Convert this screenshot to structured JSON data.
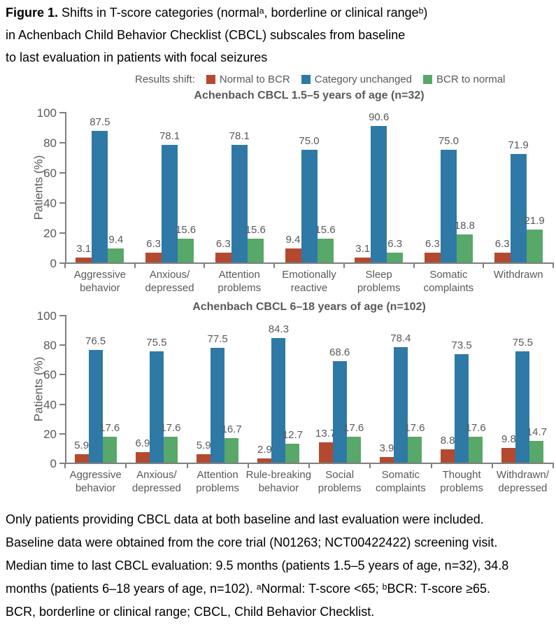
{
  "figure_caption": {
    "label": "Figure 1.",
    "line1": " Shifts in T-score categories (normalᵃ, borderline or clinical rangeᵇ)",
    "line2": "in Achenbach Child Behavior Checklist (CBCL) subscales from baseline",
    "line3": "to last evaluation in patients with focal seizures"
  },
  "legend": {
    "label": "Results shift:",
    "items": [
      {
        "label": "Normal to BCR",
        "color": "#b5492f"
      },
      {
        "label": "Category unchanged",
        "color": "#2e79a6"
      },
      {
        "label": "BCR to normal",
        "color": "#57a869"
      }
    ]
  },
  "chart_data": [
    {
      "type": "bar",
      "title": "Achenbach CBCL 1.5–5 years of age (n=32)",
      "ylabel": "Patients (%)",
      "ylim": [
        0,
        100
      ],
      "yticks": [
        0,
        20,
        40,
        60,
        80,
        100
      ],
      "grid": false,
      "legend_position": "top",
      "categories": [
        [
          "Aggressive",
          "behavior"
        ],
        [
          "Anxious/",
          "depressed"
        ],
        [
          "Attention",
          "problems"
        ],
        [
          "Emotionally",
          "reactive"
        ],
        [
          "Sleep",
          "problems"
        ],
        [
          "Somatic",
          "complaints"
        ],
        [
          "Withdrawn"
        ]
      ],
      "series": [
        {
          "name": "Normal to BCR",
          "color": "#b5492f",
          "values": [
            3.1,
            6.3,
            6.3,
            9.4,
            3.1,
            6.3,
            6.3
          ]
        },
        {
          "name": "Category unchanged",
          "color": "#2e79a6",
          "values": [
            87.5,
            78.1,
            78.1,
            75.0,
            90.6,
            75.0,
            71.9
          ]
        },
        {
          "name": "BCR to normal",
          "color": "#57a869",
          "values": [
            9.4,
            15.6,
            15.6,
            15.6,
            6.3,
            18.8,
            21.9
          ]
        }
      ]
    },
    {
      "type": "bar",
      "title": "Achenbach CBCL 6–18 years of age (n=102)",
      "ylabel": "Patients (%)",
      "ylim": [
        0,
        100
      ],
      "yticks": [
        0,
        20,
        40,
        60,
        80,
        100
      ],
      "grid": false,
      "legend_position": "top",
      "categories": [
        [
          "Aggressive",
          "behavior"
        ],
        [
          "Anxious/",
          "depressed"
        ],
        [
          "Attention",
          "problems"
        ],
        [
          "Rule-breaking",
          "behavior"
        ],
        [
          "Social",
          "problems"
        ],
        [
          "Somatic",
          "complaints"
        ],
        [
          "Thought",
          "problems"
        ],
        [
          "Withdrawn/",
          "depressed"
        ]
      ],
      "series": [
        {
          "name": "Normal to BCR",
          "color": "#b5492f",
          "values": [
            5.9,
            6.9,
            5.9,
            2.9,
            13.7,
            3.9,
            8.8,
            9.8
          ]
        },
        {
          "name": "Category unchanged",
          "color": "#2e79a6",
          "values": [
            76.5,
            75.5,
            77.5,
            84.3,
            68.6,
            78.4,
            73.5,
            75.5
          ]
        },
        {
          "name": "BCR to normal",
          "color": "#57a869",
          "values": [
            17.6,
            17.6,
            16.7,
            12.7,
            17.6,
            17.6,
            17.6,
            14.7
          ]
        }
      ]
    }
  ],
  "footnote_lines": [
    "Only patients providing CBCL data at both baseline and last evaluation were included.",
    "Baseline data were obtained from the core trial (N01263; NCT00422422) screening visit.",
    "Median time to last CBCL evaluation: 9.5 months (patients 1.5–5 years of age, n=32), 34.8",
    "months (patients 6–18 years of age, n=102). ᵃNormal: T-score <65; ᵇBCR: T-score ≥65.",
    "BCR, borderline or clinical range; CBCL, Child Behavior Checklist."
  ],
  "colors": {
    "axis": "#7f7f7f",
    "chart_text": "#595959",
    "normal_to_bcr": "#b5492f",
    "category_unchanged": "#2e79a6",
    "bcr_to_normal": "#57a869"
  }
}
